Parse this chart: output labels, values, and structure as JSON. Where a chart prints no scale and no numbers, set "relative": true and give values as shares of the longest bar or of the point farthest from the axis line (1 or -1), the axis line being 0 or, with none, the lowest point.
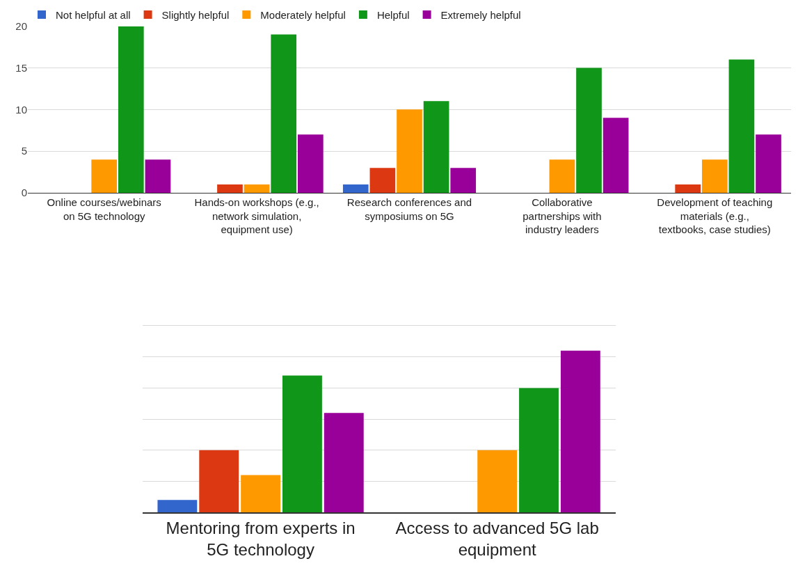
{
  "chart_data": [
    {
      "type": "bar",
      "categories": [
        "Online courses/webinars on 5G technology",
        "Hands-on workshops (e.g., network simulation, equipment use)",
        "Research conferences and symposiums on 5G",
        "Collaborative partnerships with industry leaders",
        "Development of teaching materials (e.g., textbooks, case studies)"
      ],
      "series": [
        {
          "name": "Not helpful at all",
          "color": "#3366cc",
          "values": [
            0,
            0,
            1,
            0,
            0
          ]
        },
        {
          "name": "Slightly helpful",
          "color": "#dc3912",
          "values": [
            0,
            1,
            3,
            0,
            1
          ]
        },
        {
          "name": "Moderately helpful",
          "color": "#ff9900",
          "values": [
            4,
            1,
            10,
            4,
            4
          ]
        },
        {
          "name": "Helpful",
          "color": "#109618",
          "values": [
            20,
            19,
            11,
            15,
            16
          ]
        },
        {
          "name": "Extremely helpful",
          "color": "#990099",
          "values": [
            4,
            7,
            3,
            9,
            7
          ]
        }
      ],
      "ylim": [
        0,
        20
      ],
      "yticks": [
        0,
        5,
        10,
        15,
        20
      ],
      "grid": "y",
      "legend": "top left"
    },
    {
      "type": "bar",
      "relative": true,
      "categories": [
        "Mentoring from experts in 5G technology",
        "Access to advanced 5G lab equipment"
      ],
      "series": [
        {
          "color": "#3366cc",
          "values": [
            0.077,
            0
          ]
        },
        {
          "color": "#dc3912",
          "values": [
            0.385,
            0
          ]
        },
        {
          "color": "#ff9900",
          "values": [
            0.231,
            0.385
          ]
        },
        {
          "color": "#109618",
          "values": [
            0.846,
            0.769
          ]
        },
        {
          "color": "#990099",
          "values": [
            0.615,
            1
          ]
        }
      ],
      "grid": "y"
    }
  ]
}
